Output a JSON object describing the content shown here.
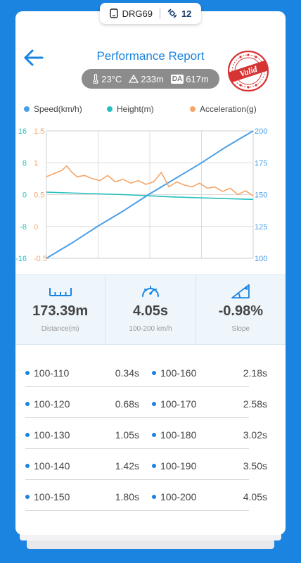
{
  "device": {
    "name": "DRG69",
    "satellites": "12"
  },
  "header": {
    "title": "Performance Report",
    "stamp_text": "Valid"
  },
  "environment": {
    "temperature": "23°C",
    "altitude": "233m",
    "da_label": "DA",
    "density_altitude": "617m"
  },
  "colors": {
    "accent": "#1a84e0",
    "speed": "#4a9fe8",
    "height": "#26c0c0",
    "acceleration": "#f5a56a",
    "stamp": "#d63333"
  },
  "chart_data": {
    "type": "line",
    "series": [
      {
        "name": "Speed(km/h)",
        "axis": "right",
        "color": "#4a9fe8",
        "x": [
          0,
          0.5,
          1.0,
          1.5,
          2.0,
          2.5,
          3.0,
          3.5,
          4.05
        ],
        "values": [
          100,
          112,
          125,
          137,
          150,
          162,
          174,
          187,
          200
        ]
      },
      {
        "name": "Height(m)",
        "axis": "left-inner-teal",
        "color": "#26c0c0",
        "x": [
          0,
          0.5,
          1.0,
          1.5,
          2.0,
          2.5,
          3.0,
          3.5,
          4.05
        ],
        "values": [
          0.6,
          0.4,
          0.2,
          0.0,
          -0.3,
          -0.6,
          -0.8,
          -1.0,
          -1.2
        ]
      },
      {
        "name": "Acceleration(g)",
        "axis": "left-orange",
        "color": "#f5a56a",
        "x": [
          0,
          0.15,
          0.3,
          0.4,
          0.5,
          0.6,
          0.75,
          0.9,
          1.05,
          1.2,
          1.35,
          1.5,
          1.65,
          1.8,
          1.95,
          2.1,
          2.25,
          2.4,
          2.55,
          2.7,
          2.85,
          3.0,
          3.15,
          3.3,
          3.45,
          3.6,
          3.75,
          3.9,
          4.05
        ],
        "values": [
          0.78,
          0.83,
          0.88,
          0.95,
          0.85,
          0.78,
          0.8,
          0.75,
          0.72,
          0.8,
          0.7,
          0.74,
          0.68,
          0.72,
          0.66,
          0.7,
          0.85,
          0.62,
          0.7,
          0.65,
          0.62,
          0.68,
          0.6,
          0.62,
          0.55,
          0.6,
          0.5,
          0.56,
          0.48
        ]
      }
    ],
    "axes": {
      "left_outer": {
        "color": "#26c0c0",
        "ticks": [
          "16",
          "8",
          "0",
          "-8",
          "-16"
        ],
        "range": [
          -16,
          16
        ]
      },
      "left_inner": {
        "color": "#f5a56a",
        "ticks": [
          "1.5",
          "1",
          "0.5",
          "0",
          "-0.5"
        ],
        "range": [
          -0.5,
          1.5
        ]
      },
      "right": {
        "color": "#4a9fe8",
        "ticks": [
          "200",
          "175",
          "150",
          "125",
          "100"
        ],
        "range": [
          100,
          200
        ]
      }
    },
    "xlim": [
      0,
      4.05
    ],
    "grid": true,
    "legend_position": "top"
  },
  "stats": [
    {
      "value": "173.39m",
      "label": "Distance(m)",
      "icon": "ruler-icon"
    },
    {
      "value": "4.05s",
      "label": "100-200 km/h",
      "icon": "speedometer-icon"
    },
    {
      "value": "-0.98%",
      "label": "Slope",
      "icon": "slope-icon"
    }
  ],
  "splits": [
    {
      "left_label": "100-110",
      "left_time": "0.34s",
      "right_label": "100-160",
      "right_time": "2.18s"
    },
    {
      "left_label": "100-120",
      "left_time": "0.68s",
      "right_label": "100-170",
      "right_time": "2.58s"
    },
    {
      "left_label": "100-130",
      "left_time": "1.05s",
      "right_label": "100-180",
      "right_time": "3.02s"
    },
    {
      "left_label": "100-140",
      "left_time": "1.42s",
      "right_label": "100-190",
      "right_time": "3.50s"
    },
    {
      "left_label": "100-150",
      "left_time": "1.80s",
      "right_label": "100-200",
      "right_time": "4.05s"
    }
  ]
}
